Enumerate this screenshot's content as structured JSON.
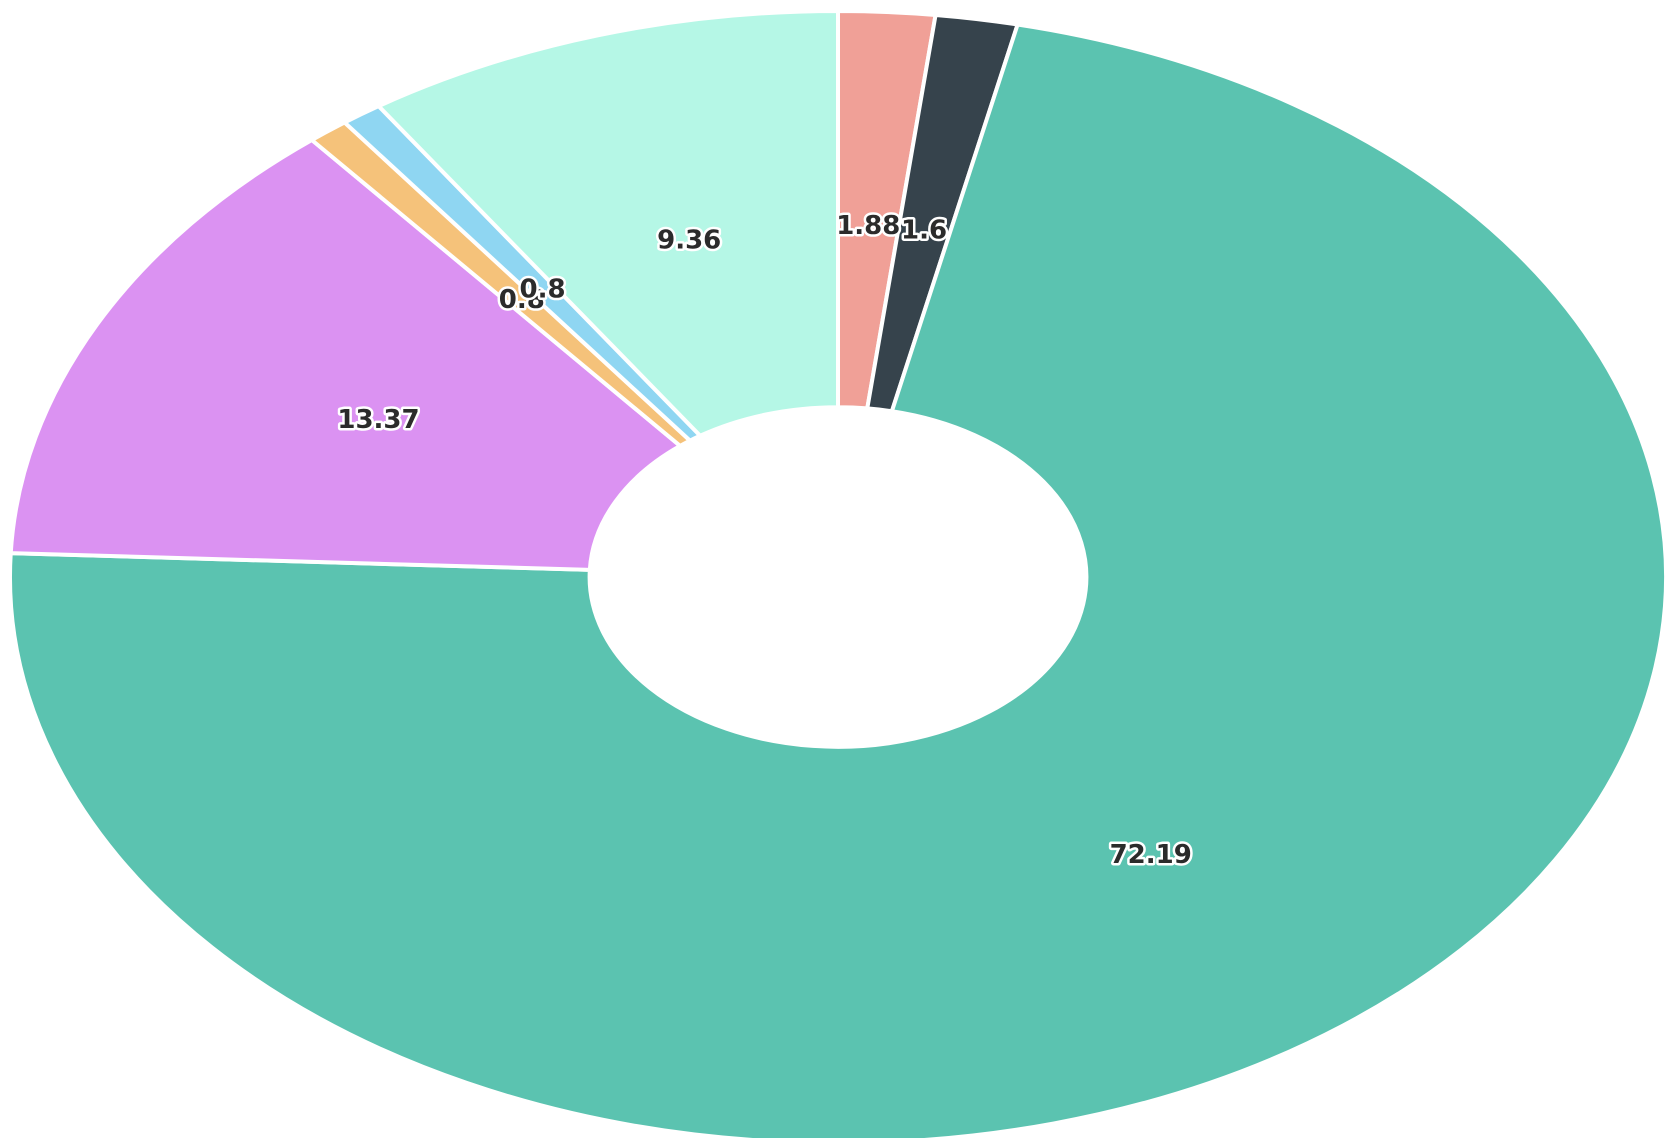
{
  "chart_data": {
    "type": "donut",
    "values": [
      1.88,
      1.6,
      72.19,
      13.37,
      0.8,
      0.8,
      9.36
    ],
    "colors": [
      "#f0a097",
      "#36434c",
      "#5bc3b0",
      "#db92f2",
      "#f5c27a",
      "#8fd6f2",
      "#b5f7e6"
    ]
  }
}
